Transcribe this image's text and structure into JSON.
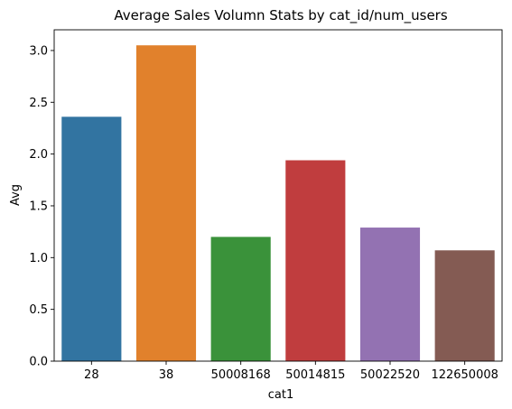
{
  "chart_data": {
    "type": "bar",
    "title": "Average Sales Volumn Stats by cat_id/num_users",
    "xlabel": "cat1",
    "ylabel": "Avg",
    "categories": [
      "28",
      "38",
      "50008168",
      "50014815",
      "50022520",
      "122650008"
    ],
    "values": [
      2.36,
      3.05,
      1.2,
      1.94,
      1.29,
      1.07
    ],
    "ylim": [
      0,
      3.2
    ],
    "yticks": [
      "0.0",
      "0.5",
      "1.0",
      "1.5",
      "2.0",
      "2.5",
      "3.0"
    ],
    "grid": false,
    "legend": "none",
    "colors": [
      "#3274a1",
      "#e1812c",
      "#3a923a",
      "#c03d3e",
      "#9372b2",
      "#845b53"
    ]
  }
}
